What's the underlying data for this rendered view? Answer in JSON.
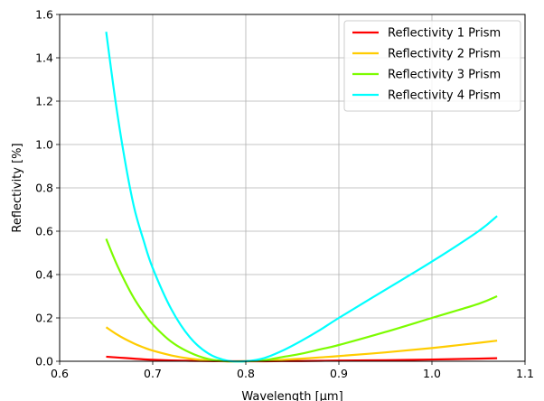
{
  "chart_data": {
    "type": "line",
    "title": "",
    "xlabel": "Wavelength [μm]",
    "ylabel": "Reflectivity [%]",
    "xlim": [
      0.6,
      1.1
    ],
    "ylim": [
      0.0,
      1.6
    ],
    "x_ticks": [
      "0.6",
      "0.7",
      "0.8",
      "0.9",
      "1.0",
      "1.1"
    ],
    "y_ticks": [
      "0.0",
      "0.2",
      "0.4",
      "0.6",
      "0.8",
      "1.0",
      "1.2",
      "1.4",
      "1.6"
    ],
    "grid": true,
    "legend_position": "top-right",
    "x": [
      0.65,
      0.66,
      0.67,
      0.68,
      0.69,
      0.7,
      0.72,
      0.74,
      0.76,
      0.78,
      0.8,
      0.82,
      0.84,
      0.86,
      0.88,
      0.9,
      0.95,
      1.0,
      1.05,
      1.07
    ],
    "series": [
      {
        "name": "Reflectivity 1 Prism",
        "color": "#ff0000",
        "values": [
          0.021,
          0.018,
          0.015,
          0.012,
          0.009,
          0.007,
          0.004,
          0.002,
          0.001,
          0.0,
          0.0,
          0.0,
          0.001,
          0.001,
          0.002,
          0.003,
          0.005,
          0.008,
          0.012,
          0.014
        ]
      },
      {
        "name": "Reflectivity 2 Prism",
        "color": "#ffcc00",
        "values": [
          0.157,
          0.128,
          0.103,
          0.082,
          0.064,
          0.049,
          0.027,
          0.012,
          0.004,
          0.0,
          0.0,
          0.002,
          0.007,
          0.012,
          0.018,
          0.024,
          0.041,
          0.061,
          0.085,
          0.095
        ]
      },
      {
        "name": "Reflectivity 3 Prism",
        "color": "#7cfc00",
        "values": [
          0.565,
          0.46,
          0.37,
          0.29,
          0.225,
          0.17,
          0.09,
          0.04,
          0.01,
          0.0,
          0.0,
          0.005,
          0.02,
          0.035,
          0.055,
          0.075,
          0.135,
          0.2,
          0.265,
          0.3
        ]
      },
      {
        "name": "Reflectivity 4 Prism",
        "color": "#00ffff",
        "values": [
          1.52,
          1.2,
          0.93,
          0.71,
          0.56,
          0.43,
          0.24,
          0.11,
          0.035,
          0.003,
          0.0,
          0.015,
          0.05,
          0.095,
          0.145,
          0.2,
          0.33,
          0.46,
          0.6,
          0.67
        ]
      }
    ]
  }
}
